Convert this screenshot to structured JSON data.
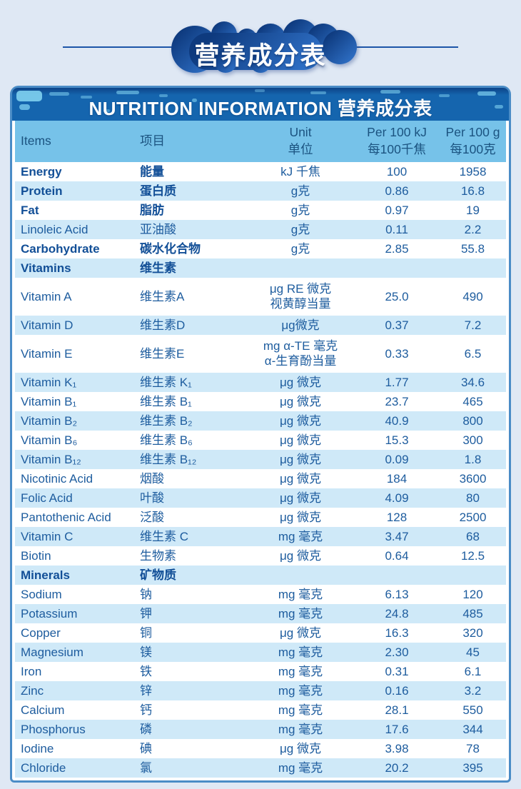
{
  "banner": {
    "title": "营养成分表"
  },
  "table": {
    "title": "NUTRITION INFORMATION 营养成分表",
    "columns": {
      "items_en": "Items",
      "items_zh": "项目",
      "unit_en": "Unit",
      "unit_zh": "单位",
      "per_100kj_en": "Per 100 kJ",
      "per_100kj_zh": "每100千焦",
      "per_100g_en": "Per 100 g",
      "per_100g_zh": "每100克"
    },
    "rows": [
      {
        "en": "Energy",
        "zh": "能量",
        "unit": "kJ 千焦",
        "kj": "100",
        "g": "1958",
        "bold": true
      },
      {
        "en": "Protein",
        "zh": "蛋白质",
        "unit": "g克",
        "kj": "0.86",
        "g": "16.8",
        "bold": true
      },
      {
        "en": "Fat",
        "zh": "脂肪",
        "unit": "g克",
        "kj": "0.97",
        "g": "19",
        "bold": true
      },
      {
        "en": "Linoleic Acid",
        "zh": "亚油酸",
        "unit": "g克",
        "kj": "0.11",
        "g": "2.2"
      },
      {
        "en": "Carbohydrate",
        "zh": "碳水化合物",
        "unit": "g克",
        "kj": "2.85",
        "g": "55.8",
        "bold": true
      },
      {
        "en": "Vitamins",
        "zh": "维生素",
        "unit": "",
        "kj": "",
        "g": "",
        "bold": true,
        "section": true
      },
      {
        "en": "Vitamin A",
        "zh": "维生素A",
        "unit": "μg RE 微克",
        "unit2": "视黄醇当量",
        "kj": "25.0",
        "g": "490"
      },
      {
        "en": "Vitamin D",
        "zh": "维生素D",
        "unit": "μg微克",
        "kj": "0.37",
        "g": "7.2"
      },
      {
        "en": "Vitamin E",
        "zh": "维生素E",
        "unit": "mg α-TE 毫克",
        "unit2": "α-生育酚当量",
        "kj": "0.33",
        "g": "6.5"
      },
      {
        "en": "Vitamin K₁",
        "zh": "维生素 K₁",
        "unit": "μg 微克",
        "kj": "1.77",
        "g": "34.6"
      },
      {
        "en": "Vitamin B₁",
        "zh": "维生素 B₁",
        "unit": "μg 微克",
        "kj": "23.7",
        "g": "465"
      },
      {
        "en": "Vitamin B₂",
        "zh": "维生素 B₂",
        "unit": "μg 微克",
        "kj": "40.9",
        "g": "800"
      },
      {
        "en": "Vitamin B₆",
        "zh": "维生素 B₆",
        "unit": "μg 微克",
        "kj": "15.3",
        "g": "300"
      },
      {
        "en": "Vitamin B₁₂",
        "zh": "维生素 B₁₂",
        "unit": "μg 微克",
        "kj": "0.09",
        "g": "1.8"
      },
      {
        "en": "Nicotinic Acid",
        "zh": "烟酸",
        "unit": "μg 微克",
        "kj": "184",
        "g": "3600"
      },
      {
        "en": "Folic Acid",
        "zh": "叶酸",
        "unit": "μg 微克",
        "kj": "4.09",
        "g": "80"
      },
      {
        "en": "Pantothenic Acid",
        "zh": "泛酸",
        "unit": "μg 微克",
        "kj": "128",
        "g": "2500"
      },
      {
        "en": "Vitamin C",
        "zh": "维生素 C",
        "unit": "mg 毫克",
        "kj": "3.47",
        "g": "68"
      },
      {
        "en": "Biotin",
        "zh": "生物素",
        "unit": "μg 微克",
        "kj": "0.64",
        "g": "12.5"
      },
      {
        "en": "Minerals",
        "zh": "矿物质",
        "unit": "",
        "kj": "",
        "g": "",
        "bold": true,
        "section": true
      },
      {
        "en": "Sodium",
        "zh": "钠",
        "unit": "mg 毫克",
        "kj": "6.13",
        "g": "120"
      },
      {
        "en": "Potassium",
        "zh": "钾",
        "unit": "mg 毫克",
        "kj": "24.8",
        "g": "485"
      },
      {
        "en": "Copper",
        "zh": "铜",
        "unit": "μg 微克",
        "kj": "16.3",
        "g": "320"
      },
      {
        "en": "Magnesium",
        "zh": "镁",
        "unit": "mg 毫克",
        "kj": "2.30",
        "g": "45"
      },
      {
        "en": "Iron",
        "zh": "铁",
        "unit": "mg 毫克",
        "kj": "0.31",
        "g": "6.1"
      },
      {
        "en": "Zinc",
        "zh": "锌",
        "unit": "mg 毫克",
        "kj": "0.16",
        "g": "3.2"
      },
      {
        "en": "Calcium",
        "zh": "钙",
        "unit": "mg 毫克",
        "kj": "28.1",
        "g": "550"
      },
      {
        "en": "Phosphorus",
        "zh": "磷",
        "unit": "mg 毫克",
        "kj": "17.6",
        "g": "344"
      },
      {
        "en": "Iodine",
        "zh": "碘",
        "unit": "μg 微克",
        "kj": "3.98",
        "g": "78"
      },
      {
        "en": "Chloride",
        "zh": "氯",
        "unit": "mg 毫克",
        "kj": "20.2",
        "g": "395"
      }
    ]
  },
  "colors": {
    "page-bg": "#dfe8f4",
    "card-border": "#4a8cc6",
    "header-bg": "#1565ae",
    "header-bg-dark": "#0d4488",
    "header-texture": "#7fd0f0",
    "colhead-bg": "#76c2e9",
    "colhead-text": "#1b5380",
    "stripe": "#cfe9f8",
    "row-text": "#1d5c9e",
    "row-text-bold": "#124f97",
    "banner-line": "#1d55a8",
    "cloud-dark": "#0e3a7e",
    "cloud-light": "#2f70c6",
    "title-text": "#ffffff"
  }
}
